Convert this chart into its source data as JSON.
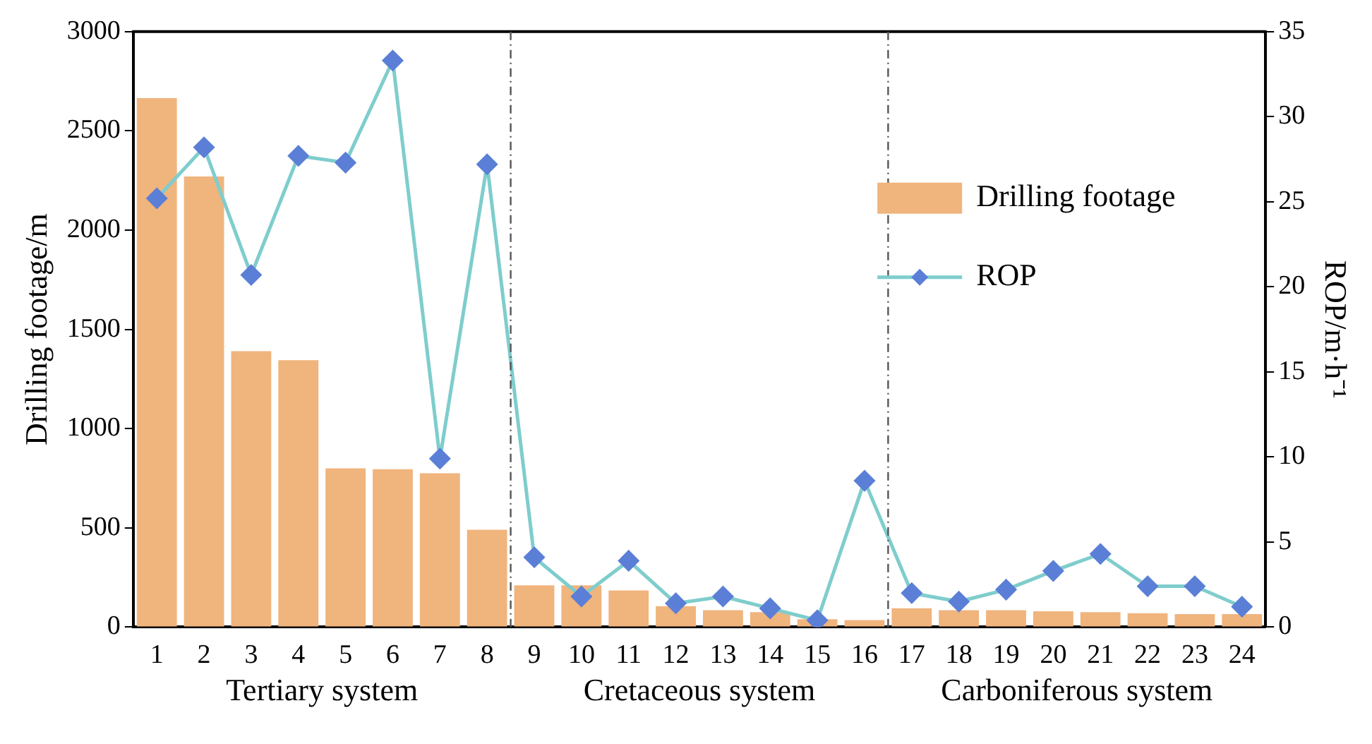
{
  "chart_data": {
    "type": "bar",
    "x": [
      1,
      2,
      3,
      4,
      5,
      6,
      7,
      8,
      9,
      10,
      11,
      12,
      13,
      14,
      15,
      16,
      17,
      18,
      19,
      20,
      21,
      22,
      23,
      24
    ],
    "xlim": [
      0.5,
      24.5
    ],
    "xticks": [
      1,
      2,
      3,
      4,
      5,
      6,
      7,
      8,
      9,
      10,
      11,
      12,
      13,
      14,
      15,
      16,
      17,
      18,
      19,
      20,
      21,
      22,
      23,
      24
    ],
    "ylabel": "Drilling footage/m",
    "y2label": "ROP/m·h⁻¹",
    "ylim": [
      0,
      3000
    ],
    "yticks": [
      0,
      500,
      1000,
      1500,
      2000,
      2500,
      3000
    ],
    "y2lim": [
      0,
      35
    ],
    "y2ticks": [
      0,
      5,
      10,
      15,
      20,
      25,
      30,
      35
    ],
    "series": [
      {
        "name": "Drilling footage",
        "color": "#f0b47d",
        "values": [
          2665,
          2270,
          1390,
          1345,
          800,
          795,
          775,
          490,
          210,
          210,
          185,
          105,
          85,
          75,
          40,
          35,
          95,
          85,
          85,
          80,
          75,
          70,
          65,
          65
        ]
      },
      {
        "name": "ROP",
        "type": "line",
        "axis": "y2",
        "color": "#7fcdcd",
        "marker": "diamond",
        "values": [
          25.2,
          28.2,
          20.7,
          27.7,
          27.3,
          33.3,
          9.9,
          27.2,
          4.1,
          1.8,
          3.9,
          1.4,
          1.8,
          1.1,
          0.4,
          8.6,
          2.0,
          1.5,
          2.2,
          3.3,
          4.3,
          2.4,
          2.4,
          1.2
        ]
      }
    ],
    "ref_lines": [
      {
        "axis": "x",
        "value": 8.5,
        "color": "#555555",
        "line_style": "dashed"
      },
      {
        "axis": "x",
        "value": 16.5,
        "color": "#555555",
        "line_style": "dashed"
      }
    ],
    "annotations": [
      "Tertiary system",
      "Cretaceous system",
      "Carboniferous system"
    ],
    "legend": "right",
    "grid": false
  }
}
